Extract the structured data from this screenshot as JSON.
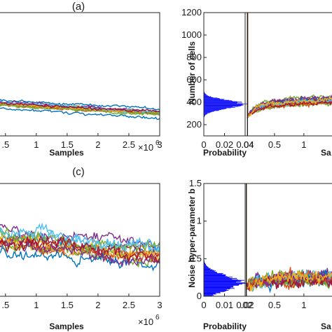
{
  "chart_data": [
    {
      "id": "a",
      "type": "line",
      "panel_label": "(a)",
      "xlabel": "Samples",
      "ylabel": "",
      "x_multiplier": "×10^6",
      "xlim": [
        0.4,
        3
      ],
      "ylim": [
        0,
        1200
      ],
      "x_ticks": [
        0.5,
        1,
        1.5,
        2,
        2.5,
        3
      ],
      "x_tick_labels": [
        ".5",
        "1",
        "1.5",
        "2",
        "2.5",
        "3"
      ],
      "grid": false,
      "series_colors": [
        "#0072BD",
        "#D95319",
        "#EDB120",
        "#7E2F8E",
        "#77AC30",
        "#4DBEEE",
        "#A2142F"
      ],
      "n_traces": 14,
      "trace_start": [
        0.4,
        310
      ],
      "trace_end": [
        3,
        220
      ],
      "trace_spread": 90,
      "trace_noise": 12
    },
    {
      "id": "b",
      "type": "line",
      "xlabel": "Samples",
      "xlabel_visible": "Sa",
      "ylabel": "Number of cells",
      "xlim": [
        0,
        1.55
      ],
      "ylim": [
        100,
        1200
      ],
      "y_ticks": [
        200,
        400,
        600,
        800,
        1000,
        1200
      ],
      "y_tick_labels": [
        "200",
        "400",
        "600",
        "800",
        "1000",
        "1200"
      ],
      "x_ticks": [
        0.04,
        0.5,
        1
      ],
      "x_tick_labels": [
        ".04",
        "0.5",
        "1"
      ],
      "grid": false,
      "series_colors": [
        "#0072BD",
        "#D95319",
        "#EDB120",
        "#7E2F8E",
        "#77AC30",
        "#4DBEEE",
        "#A2142F"
      ],
      "n_traces": 14,
      "spike_x": 0.04,
      "spike_top": 1200,
      "settle_level": 380,
      "settle_end_level": 420,
      "trace_spread": 70,
      "trace_noise": 15,
      "marginal": {
        "type": "histogram",
        "xlabel": "Probability",
        "xlim": [
          0,
          0.04
        ],
        "x_ticks": [
          0,
          0.02,
          0.04
        ],
        "x_tick_labels": [
          "0",
          "0.02",
          "0.04"
        ],
        "color": "#0000FF",
        "mean": 380,
        "sd": 38,
        "peak_probability": 0.038
      }
    },
    {
      "id": "c",
      "type": "line",
      "panel_label": "(c)",
      "xlabel": "Samples",
      "ylabel": "",
      "x_multiplier": "×10^6",
      "xlim": [
        0.4,
        3
      ],
      "ylim": [
        0,
        1
      ],
      "x_ticks": [
        0.5,
        1,
        1.5,
        2,
        2.5,
        3
      ],
      "x_tick_labels": [
        ".5",
        "1",
        "1.5",
        "2",
        "2.5",
        "3"
      ],
      "grid": false,
      "series_colors": [
        "#0072BD",
        "#D95319",
        "#EDB120",
        "#7E2F8E",
        "#77AC30",
        "#4DBEEE",
        "#A2142F"
      ],
      "n_traces": 14,
      "trace_start": [
        0.4,
        0.5
      ],
      "trace_end": [
        3,
        0.36
      ],
      "trace_spread": 0.2,
      "trace_noise": 0.05
    },
    {
      "id": "d",
      "type": "line",
      "xlabel": "Samples",
      "xlabel_visible": "Sa",
      "ylabel": "Noise hyper-parameter b",
      "xlim": [
        0,
        1.55
      ],
      "ylim": [
        0,
        1.5
      ],
      "y_ticks": [
        0,
        0.5,
        1,
        1.5
      ],
      "y_tick_labels": [
        "0",
        "0.5",
        "1",
        "1.5"
      ],
      "x_ticks": [
        0.02,
        0.5,
        1
      ],
      "x_tick_labels": [
        ".02",
        "0.5",
        "1"
      ],
      "grid": false,
      "series_colors": [
        "#0072BD",
        "#D95319",
        "#EDB120",
        "#7E2F8E",
        "#77AC30",
        "#4DBEEE",
        "#A2142F"
      ],
      "n_traces": 14,
      "spike_x": 0.02,
      "spike_top": 1.5,
      "settle_level": 0.22,
      "settle_end_level": 0.24,
      "trace_spread": 0.08,
      "trace_noise": 0.07,
      "marginal": {
        "type": "histogram",
        "xlabel": "Probability",
        "xlim": [
          0,
          0.02
        ],
        "x_ticks": [
          0,
          0.01,
          0.02
        ],
        "x_tick_labels": [
          "0",
          "0.01",
          "0.02"
        ],
        "color": "#0000FF",
        "mean": 0.18,
        "sd": 0.1,
        "peak_probability": 0.018
      }
    }
  ]
}
